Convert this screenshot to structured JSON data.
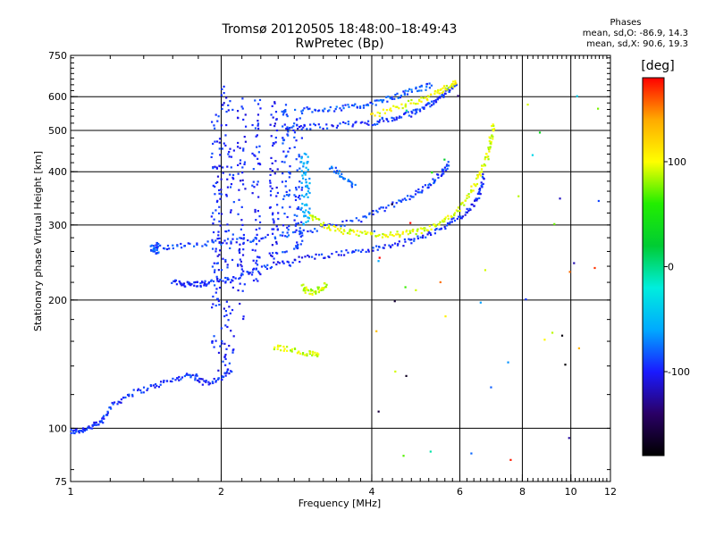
{
  "title_line1": "Tromsø 20120505 18:48:00–18:49:43",
  "title_line2": "RwPretec (Bp)",
  "stats": {
    "heading": "Phases",
    "line_o": "mean, sd,O: -86.9, 14.3",
    "line_x": "mean, sd,X:  90.6, 19.3"
  },
  "chart_data": {
    "type": "scatter",
    "xlabel": "Frequency [MHz]",
    "ylabel": "Stationary phase Virtual Height [km]",
    "x_scale": "log",
    "y_scale": "log",
    "xlim": [
      1,
      12
    ],
    "ylim": [
      75,
      750
    ],
    "x_ticks": [
      1,
      2,
      4,
      6,
      8,
      10,
      12
    ],
    "y_ticks": [
      75,
      100,
      200,
      300,
      400,
      500,
      600,
      750
    ],
    "x_grid": [
      2,
      4,
      6,
      8,
      10
    ],
    "y_grid": [
      100,
      200,
      300,
      400,
      500,
      600
    ],
    "grid": true,
    "colorbar": {
      "label": "[deg]",
      "ticks": [
        100,
        0,
        -100
      ],
      "range": [
        -180,
        180
      ],
      "colors": [
        "#000000",
        "#2a0066",
        "#1a1aff",
        "#00aaff",
        "#00eedd",
        "#00cc33",
        "#22ee00",
        "#ffff00",
        "#ffaa00",
        "#ff0000"
      ]
    },
    "traces": [
      {
        "name": "",
        "phase": -95,
        "points": [
          [
            1.0,
            98
          ],
          [
            1.05,
            99
          ],
          [
            1.1,
            101
          ],
          [
            1.15,
            103
          ],
          [
            1.2,
            112
          ],
          [
            1.3,
            120
          ],
          [
            1.45,
            125
          ],
          [
            1.6,
            130
          ],
          [
            1.75,
            134
          ],
          [
            1.85,
            128
          ],
          [
            2.0,
            131
          ],
          [
            2.1,
            138
          ]
        ]
      },
      {
        "name": "",
        "phase": -95,
        "points": [
          [
            1.6,
            220
          ],
          [
            1.7,
            218
          ],
          [
            1.8,
            218
          ],
          [
            1.9,
            219
          ],
          [
            2.1,
            225
          ],
          [
            2.3,
            234
          ],
          [
            2.6,
            244
          ],
          [
            3.0,
            252
          ],
          [
            3.5,
            258
          ],
          [
            4.0,
            263
          ],
          [
            4.5,
            270
          ],
          [
            5.0,
            280
          ],
          [
            5.5,
            295
          ],
          [
            6.0,
            312
          ],
          [
            6.4,
            335
          ],
          [
            6.6,
            360
          ],
          [
            6.7,
            392
          ]
        ]
      },
      {
        "name": "",
        "phase": -90,
        "points": [
          [
            1.5,
            265
          ],
          [
            1.7,
            270
          ],
          [
            2.0,
            274
          ],
          [
            2.3,
            278
          ],
          [
            2.7,
            285
          ],
          [
            3.2,
            295
          ],
          [
            3.8,
            310
          ],
          [
            4.3,
            330
          ],
          [
            4.8,
            350
          ],
          [
            5.2,
            372
          ],
          [
            5.5,
            395
          ],
          [
            5.7,
            420
          ]
        ]
      },
      {
        "name": "",
        "phase": -92,
        "points": [
          [
            2.7,
            505
          ],
          [
            3.0,
            510
          ],
          [
            3.5,
            516
          ],
          [
            4.0,
            522
          ],
          [
            4.4,
            532
          ],
          [
            4.8,
            548
          ],
          [
            5.1,
            568
          ],
          [
            5.4,
            592
          ],
          [
            5.7,
            620
          ],
          [
            5.9,
            640
          ]
        ]
      },
      {
        "name": "",
        "phase": -85,
        "points": [
          [
            2.9,
            560
          ],
          [
            3.3,
            562
          ],
          [
            3.7,
            568
          ],
          [
            4.1,
            582
          ],
          [
            4.5,
            602
          ],
          [
            4.9,
            625
          ],
          [
            5.3,
            638
          ]
        ]
      },
      {
        "name": "",
        "phase": 95,
        "points": [
          [
            3.0,
            318
          ],
          [
            3.2,
            300
          ],
          [
            3.5,
            290
          ],
          [
            3.8,
            286
          ],
          [
            4.2,
            284
          ],
          [
            4.6,
            286
          ],
          [
            5.0,
            290
          ],
          [
            5.4,
            300
          ],
          [
            5.8,
            315
          ],
          [
            6.2,
            345
          ],
          [
            6.5,
            385
          ],
          [
            6.8,
            430
          ],
          [
            6.9,
            470
          ],
          [
            7.0,
            520
          ]
        ]
      },
      {
        "name": "",
        "phase": 100,
        "points": [
          [
            4.0,
            540
          ],
          [
            4.5,
            568
          ],
          [
            5.0,
            590
          ],
          [
            5.4,
            612
          ],
          [
            5.7,
            635
          ],
          [
            5.9,
            648
          ]
        ]
      },
      {
        "name": "",
        "phase": 90,
        "points": [
          [
            2.9,
            215
          ],
          [
            3.0,
            208
          ],
          [
            3.15,
            212
          ],
          [
            3.25,
            218
          ]
        ]
      },
      {
        "name": "",
        "phase": 90,
        "points": [
          [
            2.55,
            155
          ],
          [
            2.75,
            153
          ],
          [
            3.0,
            150
          ],
          [
            3.15,
            148
          ]
        ]
      },
      {
        "name": "",
        "phase": -80,
        "points": [
          [
            3.3,
            410
          ],
          [
            3.5,
            390
          ],
          [
            3.7,
            370
          ]
        ]
      },
      {
        "name": "",
        "phase": -85,
        "points": [
          [
            1.5,
            270
          ],
          [
            1.45,
            265
          ],
          [
            1.5,
            258
          ]
        ]
      }
    ],
    "columns": [
      {
        "x": 2.0,
        "ylo": 120,
        "yhi": 640,
        "phase": -100
      },
      {
        "x": 1.95,
        "ylo": 150,
        "yhi": 560,
        "phase": -95
      },
      {
        "x": 2.08,
        "ylo": 140,
        "yhi": 600,
        "phase": -95
      },
      {
        "x": 2.2,
        "ylo": 180,
        "yhi": 600,
        "phase": -100
      },
      {
        "x": 2.35,
        "ylo": 220,
        "yhi": 590,
        "phase": -95
      },
      {
        "x": 2.55,
        "ylo": 250,
        "yhi": 600,
        "phase": -100
      },
      {
        "x": 2.7,
        "ylo": 240,
        "yhi": 580,
        "phase": -90
      },
      {
        "x": 2.85,
        "ylo": 260,
        "yhi": 560,
        "phase": -90
      },
      {
        "x": 2.95,
        "ylo": 300,
        "yhi": 450,
        "phase": -60
      }
    ]
  }
}
